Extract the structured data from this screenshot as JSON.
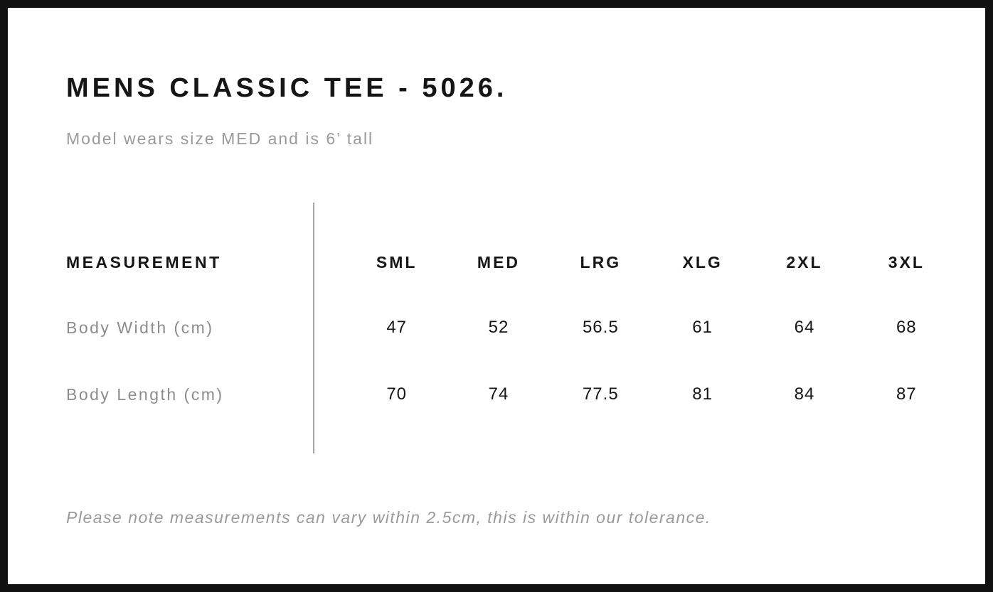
{
  "page": {
    "title": "MENS CLASSIC TEE - 5026.",
    "subtitle": "Model wears size MED and is 6’ tall",
    "footnote": "Please note measurements can vary within 2.5cm, this is within our tolerance."
  },
  "table": {
    "measurement_header": "MEASUREMENT",
    "size_headers": [
      "SML",
      "MED",
      "LRG",
      "XLG",
      "2XL",
      "3XL"
    ],
    "rows": [
      {
        "label": "Body Width (cm)",
        "values": [
          "47",
          "52",
          "56.5",
          "61",
          "64",
          "68"
        ]
      },
      {
        "label": "Body Length (cm)",
        "values": [
          "70",
          "74",
          "77.5",
          "81",
          "84",
          "87"
        ]
      }
    ]
  },
  "colors": {
    "frame_border": "#111111",
    "text_primary": "#161616",
    "text_muted": "#9a9a9a",
    "divider": "#a6a6a6",
    "background": "#ffffff"
  }
}
